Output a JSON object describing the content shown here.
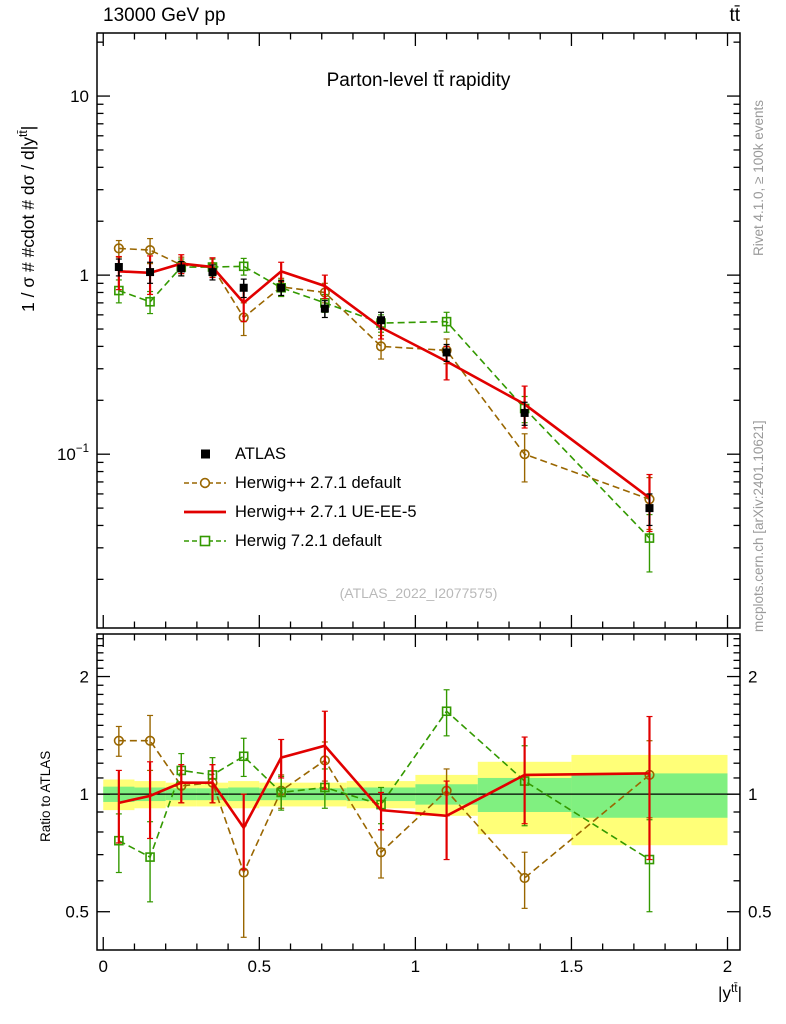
{
  "header": {
    "left": "13000 GeV pp",
    "right": "tt̄"
  },
  "titles": {
    "main": "Parton-level tt̄ rapidity"
  },
  "watermark": "(ATLAS_2022_I2077575)",
  "side_texts": {
    "top_right": "Rivet 4.1.0, ≥ 100k events",
    "bottom_right": "mcplots.cern.ch [arXiv:2401.10621]"
  },
  "axes_labels": {
    "y_main": {
      "pre": "1 / σ # #cdot # dσ / d|y",
      "sup": "tt̄",
      "post": "|"
    },
    "y_ratio": "Ratio to ATLAS",
    "x": {
      "pre": "|y",
      "sup": "tt̄",
      "post": "|"
    }
  },
  "legend": {
    "items": [
      {
        "label": "ATLAS",
        "marker": "square-filled",
        "color": "#000000",
        "icon": "atlas-marker-icon"
      },
      {
        "label": "Herwig++ 2.7.1 default",
        "marker": "dashed-circle",
        "color": "#996600",
        "icon": "herwigpp-default-marker-icon"
      },
      {
        "label": "Herwig++ 2.7.1 UE-EE-5",
        "marker": "solid-line",
        "color": "#e10000",
        "icon": "herwigpp-ueee5-marker-icon"
      },
      {
        "label": "Herwig 7.2.1 default",
        "marker": "dashed-square",
        "color": "#339900",
        "icon": "herwig7-default-marker-icon"
      }
    ]
  },
  "chart_data": {
    "type": "line",
    "title": "Parton-level tt̄ rapidity",
    "xlabel": "|y^tt|",
    "x": [
      0.05,
      0.15,
      0.25,
      0.35,
      0.45,
      0.57,
      0.71,
      0.89,
      1.1,
      1.35,
      1.75
    ],
    "bin_edges": [
      0,
      0.1,
      0.2,
      0.3,
      0.4,
      0.5,
      0.64,
      0.78,
      1.0,
      1.2,
      1.5,
      2.0
    ],
    "x_axis": {
      "range": [
        -0.02,
        2.04
      ],
      "minor_step": 0.1,
      "tick_labels": [
        {
          "v": 0,
          "text": "0"
        },
        {
          "v": 0.5,
          "text": "0.5"
        },
        {
          "v": 1,
          "text": "1"
        },
        {
          "v": 1.5,
          "text": "1.5"
        },
        {
          "v": 2,
          "text": "2"
        }
      ]
    },
    "main_panel": {
      "ylabel": "1 / σ dσ / d|y^tt|",
      "yscale": "log",
      "ylim": [
        0.0107,
        22.5
      ],
      "tick_labels": [
        {
          "v": 10,
          "text": "10"
        },
        {
          "v": 1,
          "text": "1"
        },
        {
          "v": 0.1,
          "text": "10",
          "sup": "−1"
        }
      ],
      "series": [
        {
          "id": "herwigpp-default",
          "name": "Herwig++ 2.7.1 default",
          "color": "#996600",
          "marker": "circle-open",
          "line": "dashed",
          "dash": "7,4",
          "line_width": 1.6,
          "err_width": 1.4,
          "values": [
            1.41,
            1.38,
            1.14,
            1.11,
            0.58,
            0.86,
            0.8,
            0.4,
            0.38,
            0.1,
            0.056
          ],
          "errors": [
            0.15,
            0.22,
            0.12,
            0.12,
            0.12,
            0.1,
            0.1,
            0.06,
            0.06,
            0.03,
            0.018
          ]
        },
        {
          "id": "herwig7-default",
          "name": "Herwig 7.2.1 default",
          "color": "#339900",
          "marker": "square-open",
          "line": "dashed",
          "dash": "7,4",
          "line_width": 1.6,
          "err_width": 1.4,
          "values": [
            0.82,
            0.71,
            1.11,
            1.11,
            1.12,
            0.85,
            0.7,
            0.54,
            0.55,
            0.18,
            0.034
          ],
          "errors": [
            0.12,
            0.1,
            0.12,
            0.12,
            0.12,
            0.09,
            0.08,
            0.06,
            0.07,
            0.03,
            0.012
          ]
        },
        {
          "id": "herwigpp-ueee5",
          "name": "Herwig++ 2.7.1 UE-EE-5",
          "color": "#e10000",
          "marker": "none",
          "line": "solid",
          "line_width": 2.6,
          "err_width": 2.2,
          "values": [
            1.05,
            1.03,
            1.16,
            1.11,
            0.7,
            1.05,
            0.87,
            0.51,
            0.33,
            0.19,
            0.057
          ],
          "errors": [
            0.22,
            0.25,
            0.14,
            0.14,
            0.15,
            0.13,
            0.13,
            0.07,
            0.07,
            0.05,
            0.02
          ]
        },
        {
          "id": "atlas",
          "name": "ATLAS",
          "color": "#000000",
          "marker": "square-filled",
          "line": "none",
          "line_width": 0,
          "err_width": 1.5,
          "values": [
            1.11,
            1.04,
            1.09,
            1.04,
            0.85,
            0.85,
            0.65,
            0.56,
            0.37,
            0.17,
            0.05
          ],
          "errors": [
            0.12,
            0.14,
            0.1,
            0.1,
            0.1,
            0.08,
            0.07,
            0.06,
            0.04,
            0.025,
            0.01
          ]
        }
      ]
    },
    "ratio_panel": {
      "ylabel": "Ratio to ATLAS",
      "yscale": "log",
      "ylim": [
        0.399,
        2.57
      ],
      "tick_labels": [
        {
          "v": 2,
          "text": "2"
        },
        {
          "v": 1,
          "text": "1"
        },
        {
          "v": 0.5,
          "text": "0.5"
        }
      ],
      "bands": {
        "outer": {
          "color": "#ffff78",
          "half_widths": [
            0.09,
            0.08,
            0.07,
            0.07,
            0.08,
            0.07,
            0.07,
            0.08,
            0.12,
            0.21,
            0.26
          ]
        },
        "inner": {
          "color": "#80f080",
          "half_widths": [
            0.045,
            0.04,
            0.035,
            0.035,
            0.04,
            0.035,
            0.035,
            0.04,
            0.06,
            0.1,
            0.13
          ]
        }
      },
      "series": [
        {
          "id": "herwigpp-default-ratio",
          "name": "Herwig++ 2.7.1 default",
          "color": "#996600",
          "marker": "circle-open",
          "line": "dashed",
          "dash": "7,4",
          "line_width": 1.6,
          "err_width": 1.4,
          "values": [
            1.37,
            1.37,
            1.05,
            1.07,
            0.63,
            1.02,
            1.22,
            0.71,
            1.02,
            0.61,
            1.12
          ],
          "errors": [
            0.12,
            0.22,
            0.1,
            0.12,
            0.2,
            0.1,
            0.14,
            0.1,
            0.14,
            0.1,
            0.25
          ]
        },
        {
          "id": "herwig7-default-ratio",
          "name": "Herwig 7.2.1 default",
          "color": "#339900",
          "marker": "square-open",
          "line": "dashed",
          "dash": "7,4",
          "line_width": 1.6,
          "err_width": 1.4,
          "values": [
            0.76,
            0.69,
            1.15,
            1.12,
            1.25,
            1.01,
            1.04,
            0.94,
            1.63,
            1.08,
            0.68
          ],
          "errors": [
            0.13,
            0.16,
            0.12,
            0.12,
            0.14,
            0.1,
            0.12,
            0.1,
            0.22,
            0.25,
            0.18
          ]
        },
        {
          "id": "herwigpp-ueee5-ratio",
          "name": "Herwig++ 2.7.1 UE-EE-5",
          "color": "#e10000",
          "marker": "none",
          "line": "solid",
          "line_width": 2.6,
          "err_width": 2.2,
          "values": [
            0.95,
            0.99,
            1.07,
            1.07,
            0.82,
            1.24,
            1.33,
            0.91,
            0.88,
            1.12,
            1.13
          ],
          "errors": [
            0.2,
            0.22,
            0.12,
            0.12,
            0.18,
            0.14,
            0.3,
            0.1,
            0.2,
            0.28,
            0.45
          ]
        }
      ]
    }
  }
}
